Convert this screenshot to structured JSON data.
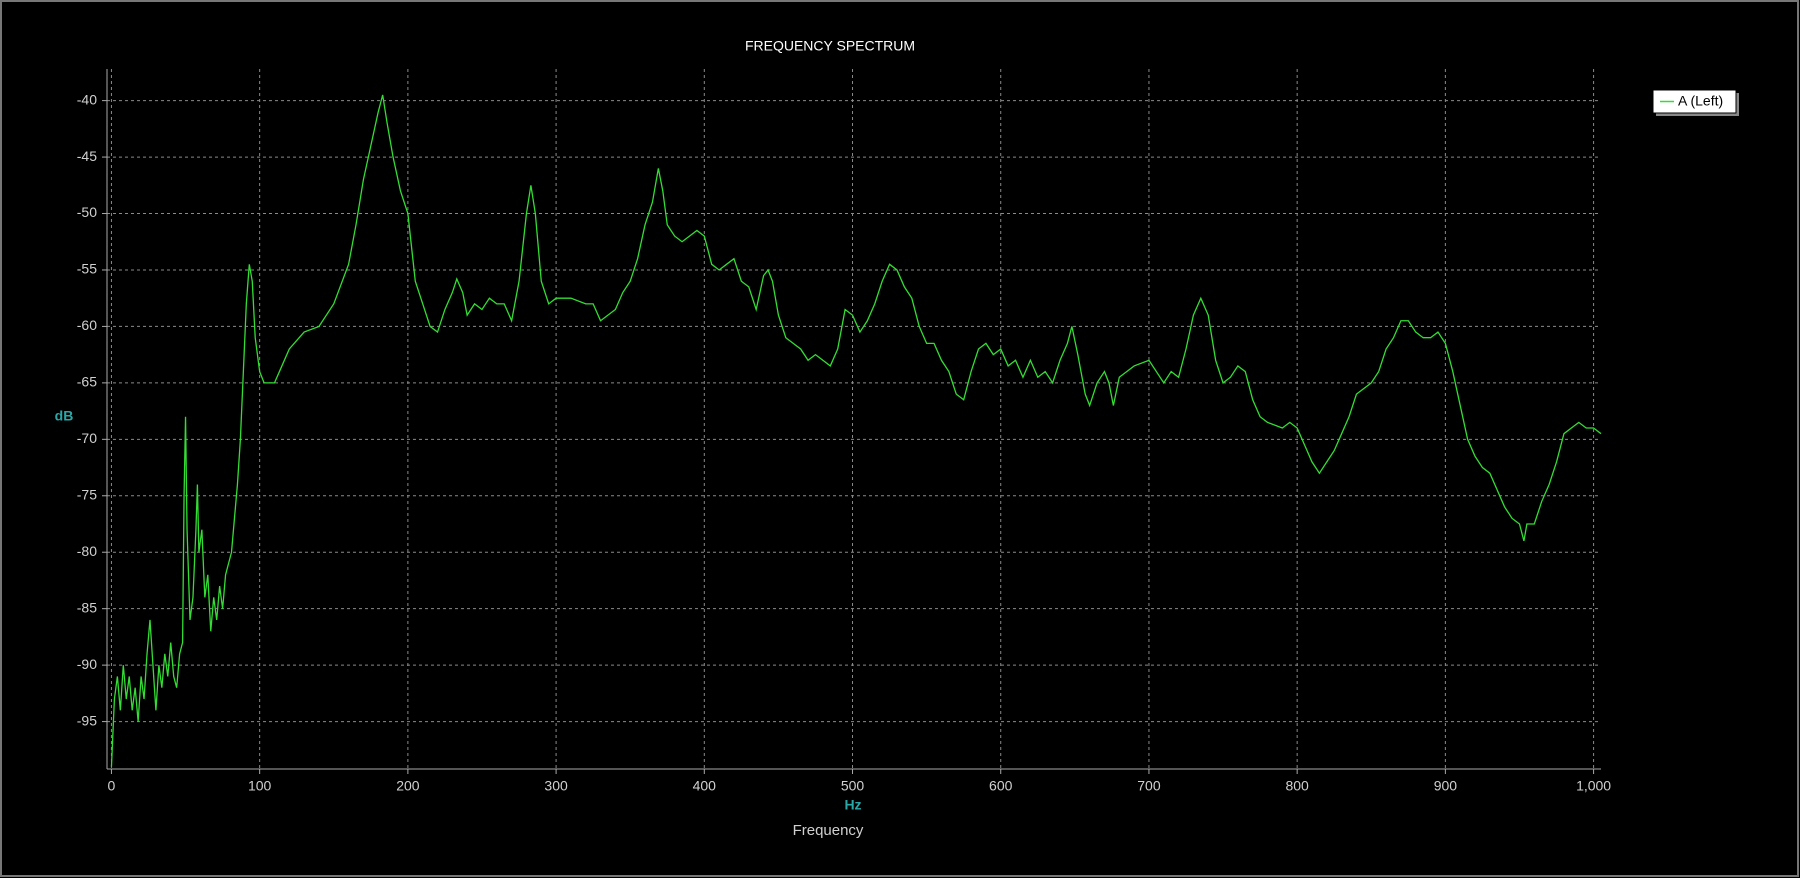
{
  "chart_data": {
    "type": "line",
    "title": "FREQUENCY SPECTRUM",
    "x_label": "Frequency",
    "x_unit": "Hz",
    "y_label": "dB",
    "grid": true,
    "legend_position": "upper right",
    "xlim": [
      -3,
      1005
    ],
    "ylim": [
      -99.2,
      -37.2
    ],
    "xticks": [
      0,
      100,
      200,
      300,
      400,
      500,
      600,
      700,
      800,
      900,
      {
        "value": 1000,
        "label": "1,000"
      }
    ],
    "yticks": [
      -40,
      -45,
      -50,
      -55,
      -60,
      -65,
      -70,
      -75,
      -80,
      -85,
      -90,
      -95
    ],
    "x": [
      0,
      2,
      4,
      6,
      8,
      10,
      12,
      14,
      16,
      18,
      20,
      22,
      24,
      26,
      28,
      30,
      32,
      34,
      36,
      38,
      40,
      42,
      44,
      46,
      48,
      49,
      50,
      51,
      52,
      53,
      55,
      57,
      58,
      59,
      61,
      63,
      65,
      67,
      69,
      71,
      73,
      75,
      77,
      79,
      81,
      83,
      85,
      87,
      89,
      91,
      93,
      95,
      97,
      100,
      103,
      106,
      110,
      115,
      120,
      130,
      140,
      150,
      160,
      165,
      170,
      175,
      180,
      183,
      186,
      190,
      195,
      200,
      205,
      210,
      215,
      220,
      225,
      230,
      233,
      237,
      240,
      245,
      250,
      255,
      260,
      265,
      270,
      275,
      280,
      283,
      286,
      290,
      295,
      300,
      310,
      320,
      325,
      330,
      340,
      345,
      350,
      355,
      360,
      365,
      369,
      372,
      375,
      380,
      385,
      390,
      395,
      400,
      405,
      410,
      415,
      420,
      425,
      430,
      435,
      440,
      443,
      446,
      450,
      455,
      460,
      465,
      470,
      475,
      480,
      485,
      490,
      495,
      500,
      505,
      510,
      515,
      520,
      525,
      530,
      535,
      540,
      545,
      550,
      555,
      560,
      565,
      570,
      575,
      580,
      585,
      590,
      595,
      600,
      605,
      610,
      615,
      620,
      625,
      630,
      635,
      640,
      645,
      648,
      652,
      657,
      660,
      665,
      670,
      673,
      676,
      680,
      685,
      690,
      700,
      705,
      710,
      715,
      720,
      725,
      730,
      735,
      740,
      745,
      750,
      755,
      760,
      765,
      770,
      775,
      780,
      790,
      795,
      800,
      805,
      810,
      815,
      820,
      825,
      830,
      835,
      840,
      850,
      855,
      860,
      865,
      870,
      875,
      880,
      885,
      890,
      895,
      900,
      905,
      910,
      915,
      920,
      925,
      930,
      935,
      940,
      945,
      950,
      953,
      955,
      960,
      965,
      970,
      975,
      980,
      985,
      990,
      995,
      1000,
      1005
    ],
    "series": [
      {
        "name": "A (Left)",
        "color": "#33dd33",
        "values": [
          -99,
          -93,
          -91,
          -94,
          -90,
          -93,
          -91,
          -94,
          -92,
          -95,
          -91,
          -93,
          -89,
          -86,
          -90,
          -94,
          -90,
          -92,
          -89,
          -91,
          -88,
          -91,
          -92,
          -89,
          -88,
          -75,
          -68,
          -78,
          -82,
          -86,
          -84,
          -78,
          -74,
          -80,
          -78,
          -84,
          -82,
          -87,
          -84,
          -86,
          -83,
          -85,
          -82,
          -81,
          -80,
          -77,
          -74,
          -70,
          -64,
          -58,
          -54.5,
          -56,
          -61,
          -64,
          -65,
          -65,
          -65,
          -63.5,
          -62,
          -60.5,
          -60,
          -58,
          -54.5,
          -51,
          -47,
          -44,
          -41,
          -39.5,
          -42,
          -45,
          -48,
          -50,
          -56,
          -58,
          -60,
          -60.5,
          -58.5,
          -57,
          -55.8,
          -57,
          -59,
          -58,
          -58.5,
          -57.5,
          -58,
          -58,
          -59.5,
          -56,
          -50,
          -47.5,
          -50,
          -56,
          -58,
          -57.5,
          -57.5,
          -58,
          -58,
          -59.5,
          -58.5,
          -57,
          -56,
          -54,
          -51,
          -49,
          -46,
          -48,
          -51,
          -52,
          -52.5,
          -52,
          -51.5,
          -52,
          -54.5,
          -55,
          -54.5,
          -54,
          -56,
          -56.5,
          -58.5,
          -55.5,
          -55,
          -56,
          -59,
          -61,
          -61.5,
          -62,
          -63,
          -62.5,
          -63,
          -63.5,
          -62,
          -58.5,
          -59,
          -60.5,
          -59.5,
          -58,
          -56,
          -54.5,
          -55,
          -56.5,
          -57.5,
          -60,
          -61.5,
          -61.5,
          -63,
          -64,
          -66,
          -66.5,
          -64,
          -62,
          -61.5,
          -62.5,
          -62,
          -63.5,
          -63,
          -64.5,
          -63,
          -64.5,
          -64,
          -65,
          -63,
          -61.5,
          -60,
          -62.5,
          -66,
          -67,
          -65,
          -64,
          -65,
          -67,
          -64.5,
          -64,
          -63.5,
          -63,
          -64,
          -65,
          -64,
          -64.5,
          -62,
          -59,
          -57.5,
          -59,
          -63,
          -65,
          -64.5,
          -63.5,
          -64,
          -66.5,
          -68,
          -68.5,
          -69,
          -68.5,
          -69,
          -70.5,
          -72,
          -73,
          -72,
          -71,
          -69.5,
          -68,
          -66,
          -65,
          -64,
          -62,
          -61,
          -59.5,
          -59.5,
          -60.5,
          -61,
          -61,
          -60.5,
          -61.5,
          -64,
          -67,
          -70,
          -71.5,
          -72.5,
          -73,
          -74.5,
          -76,
          -77,
          -77.5,
          -79,
          -77.5,
          -77.5,
          -75.5,
          -74,
          -72,
          -69.5,
          -69,
          -68.5,
          -69,
          -69,
          -69.5
        ]
      }
    ]
  }
}
